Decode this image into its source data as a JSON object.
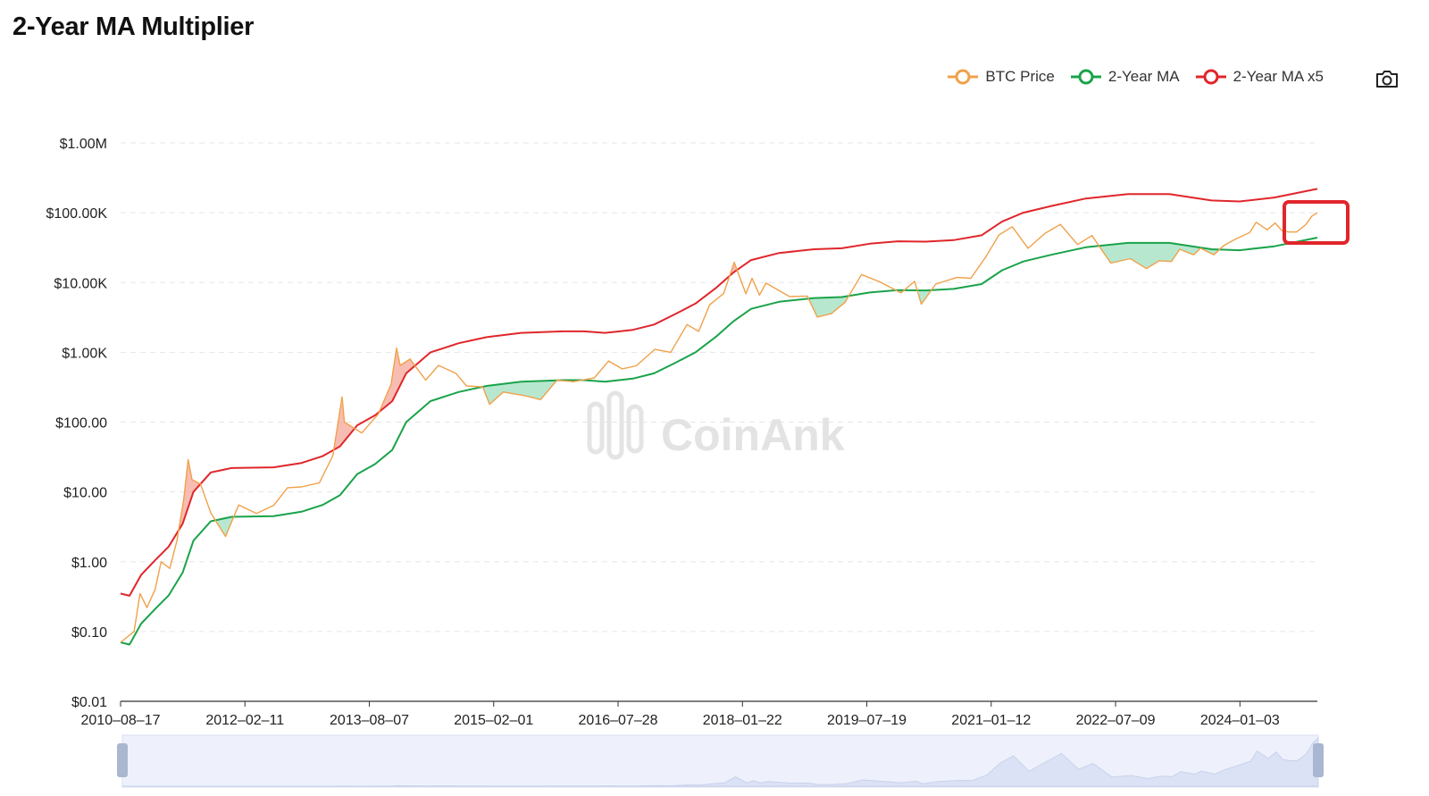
{
  "page": {
    "title": "2-Year MA Multiplier"
  },
  "legend": [
    {
      "label": "BTC Price",
      "color": "#f0a14a"
    },
    {
      "label": "2-Year MA",
      "color": "#1aa34a"
    },
    {
      "label": "2-Year MA x5",
      "color": "#e0262b"
    }
  ],
  "toolbar": {
    "camera_icon": "camera-icon"
  },
  "watermark": "CoinAnk",
  "colors": {
    "btc": "#f0a14a",
    "ma": "#1aa34a",
    "ma5": "#e0262b",
    "above_fill": "#f4a79a",
    "below_fill": "#9fe0bf",
    "highlight": "#e0262b"
  },
  "chart_data": {
    "type": "line",
    "title": "2-Year MA Multiplier",
    "y_scale": "log",
    "ylim": [
      0.01,
      1000000
    ],
    "y_ticks": [
      {
        "value": 1000000,
        "label": "$1.00M"
      },
      {
        "value": 100000,
        "label": "$100.00K"
      },
      {
        "value": 10000,
        "label": "$10.00K"
      },
      {
        "value": 1000,
        "label": "$1.00K"
      },
      {
        "value": 100,
        "label": "$100.00"
      },
      {
        "value": 10,
        "label": "$10.00"
      },
      {
        "value": 1,
        "label": "$1.00"
      },
      {
        "value": 0.1,
        "label": "$0.10"
      },
      {
        "value": 0.01,
        "label": "$0.01"
      }
    ],
    "x_range": [
      "2010-08-17",
      "2024-12-06"
    ],
    "x_ticks": [
      "2010-08-17",
      "2012-02-11",
      "2013-08-07",
      "2015-02-01",
      "2016-07-28",
      "2018-01-22",
      "2019-07-19",
      "2021-01-12",
      "2022-07-09",
      "2024-01-03"
    ],
    "grid": true,
    "legend_position": "top-right",
    "series": [
      {
        "name": "BTC Price",
        "color": "#f0a14a",
        "points": [
          [
            "2010-08-17",
            0.07
          ],
          [
            "2010-10-15",
            0.1
          ],
          [
            "2010-11-10",
            0.35
          ],
          [
            "2010-12-10",
            0.22
          ],
          [
            "2011-01-15",
            0.4
          ],
          [
            "2011-02-10",
            1.0
          ],
          [
            "2011-03-20",
            0.8
          ],
          [
            "2011-04-20",
            2.0
          ],
          [
            "2011-05-20",
            8.0
          ],
          [
            "2011-06-08",
            29.0
          ],
          [
            "2011-06-25",
            15.0
          ],
          [
            "2011-08-01",
            13.0
          ],
          [
            "2011-09-15",
            5.0
          ],
          [
            "2011-11-18",
            2.3
          ],
          [
            "2012-01-15",
            6.5
          ],
          [
            "2012-04-01",
            4.9
          ],
          [
            "2012-06-15",
            6.4
          ],
          [
            "2012-08-15",
            11.5
          ],
          [
            "2012-10-15",
            11.8
          ],
          [
            "2013-01-01",
            13.5
          ],
          [
            "2013-03-01",
            33.0
          ],
          [
            "2013-04-10",
            230.0
          ],
          [
            "2013-04-20",
            100.0
          ],
          [
            "2013-07-05",
            70.0
          ],
          [
            "2013-09-15",
            130.0
          ],
          [
            "2013-11-10",
            350.0
          ],
          [
            "2013-12-04",
            1150.0
          ],
          [
            "2013-12-20",
            650.0
          ],
          [
            "2014-02-01",
            800.0
          ],
          [
            "2014-04-10",
            400.0
          ],
          [
            "2014-06-05",
            650.0
          ],
          [
            "2014-08-20",
            500.0
          ],
          [
            "2014-10-05",
            330.0
          ],
          [
            "2014-12-15",
            320.0
          ],
          [
            "2015-01-14",
            180.0
          ],
          [
            "2015-03-15",
            270.0
          ],
          [
            "2015-06-15",
            240.0
          ],
          [
            "2015-08-25",
            210.0
          ],
          [
            "2015-11-04",
            400.0
          ],
          [
            "2016-01-15",
            380.0
          ],
          [
            "2016-04-15",
            430.0
          ],
          [
            "2016-06-17",
            750.0
          ],
          [
            "2016-08-15",
            580.0
          ],
          [
            "2016-10-15",
            640.0
          ],
          [
            "2017-01-04",
            1100.0
          ],
          [
            "2017-03-15",
            1000.0
          ],
          [
            "2017-05-25",
            2500.0
          ],
          [
            "2017-07-15",
            2000.0
          ],
          [
            "2017-09-01",
            4800.0
          ],
          [
            "2017-11-01",
            7000.0
          ],
          [
            "2017-12-17",
            19500.0
          ],
          [
            "2018-02-06",
            6900.0
          ],
          [
            "2018-03-05",
            11500.0
          ],
          [
            "2018-04-06",
            6600.0
          ],
          [
            "2018-05-05",
            9800.0
          ],
          [
            "2018-08-15",
            6300.0
          ],
          [
            "2018-11-01",
            6400.0
          ],
          [
            "2018-12-15",
            3200.0
          ],
          [
            "2019-02-15",
            3600.0
          ],
          [
            "2019-04-15",
            5200.0
          ],
          [
            "2019-06-26",
            13000.0
          ],
          [
            "2019-09-15",
            10200.0
          ],
          [
            "2019-12-15",
            7100.0
          ],
          [
            "2020-02-13",
            10400.0
          ],
          [
            "2020-03-13",
            4900.0
          ],
          [
            "2020-05-15",
            9500.0
          ],
          [
            "2020-08-15",
            11800.0
          ],
          [
            "2020-10-15",
            11500.0
          ],
          [
            "2020-12-20",
            23500.0
          ],
          [
            "2021-02-15",
            48000.0
          ],
          [
            "2021-04-14",
            63000.0
          ],
          [
            "2021-06-22",
            31000.0
          ],
          [
            "2021-09-05",
            51000.0
          ],
          [
            "2021-11-10",
            68000.0
          ],
          [
            "2022-01-24",
            35000.0
          ],
          [
            "2022-03-28",
            47000.0
          ],
          [
            "2022-06-18",
            19000.0
          ],
          [
            "2022-09-12",
            22000.0
          ],
          [
            "2022-11-21",
            15800.0
          ],
          [
            "2023-01-15",
            20500.0
          ],
          [
            "2023-03-10",
            20000.0
          ],
          [
            "2023-04-15",
            30000.0
          ],
          [
            "2023-06-15",
            25000.0
          ],
          [
            "2023-07-15",
            31000.0
          ],
          [
            "2023-09-11",
            25000.0
          ],
          [
            "2023-10-25",
            34000.0
          ],
          [
            "2023-12-15",
            42000.0
          ],
          [
            "2024-02-15",
            52000.0
          ],
          [
            "2024-03-14",
            73000.0
          ],
          [
            "2024-05-01",
            57000.0
          ],
          [
            "2024-06-05",
            71000.0
          ],
          [
            "2024-07-05",
            55000.0
          ],
          [
            "2024-08-05",
            53000.0
          ],
          [
            "2024-09-06",
            53000.0
          ],
          [
            "2024-10-15",
            67000.0
          ],
          [
            "2024-11-13",
            90000.0
          ],
          [
            "2024-12-06",
            100000.0
          ]
        ]
      },
      {
        "name": "2-Year MA",
        "color": "#1aa34a",
        "points": [
          [
            "2010-08-17",
            0.07
          ],
          [
            "2010-09-25",
            0.065
          ],
          [
            "2010-11-15",
            0.13
          ],
          [
            "2011-01-15",
            0.21
          ],
          [
            "2011-03-15",
            0.33
          ],
          [
            "2011-05-15",
            0.7
          ],
          [
            "2011-07-01",
            2.0
          ],
          [
            "2011-09-15",
            3.8
          ],
          [
            "2011-12-15",
            4.4
          ],
          [
            "2012-06-15",
            4.5
          ],
          [
            "2012-10-15",
            5.2
          ],
          [
            "2013-01-15",
            6.5
          ],
          [
            "2013-04-01",
            9.0
          ],
          [
            "2013-06-15",
            18.0
          ],
          [
            "2013-09-01",
            25.0
          ],
          [
            "2013-11-15",
            40.0
          ],
          [
            "2014-01-15",
            100.0
          ],
          [
            "2014-05-01",
            200.0
          ],
          [
            "2014-09-01",
            270.0
          ],
          [
            "2015-01-01",
            330.0
          ],
          [
            "2015-06-01",
            380.0
          ],
          [
            "2015-12-01",
            400.0
          ],
          [
            "2016-03-01",
            400.0
          ],
          [
            "2016-06-01",
            380.0
          ],
          [
            "2016-10-01",
            420.0
          ],
          [
            "2017-01-01",
            500.0
          ],
          [
            "2017-04-01",
            700.0
          ],
          [
            "2017-07-01",
            1000.0
          ],
          [
            "2017-10-01",
            1700.0
          ],
          [
            "2017-12-15",
            2800.0
          ],
          [
            "2018-03-01",
            4200.0
          ],
          [
            "2018-07-01",
            5300.0
          ],
          [
            "2018-12-01",
            6000.0
          ],
          [
            "2019-04-01",
            6200.0
          ],
          [
            "2019-08-01",
            7200.0
          ],
          [
            "2019-12-01",
            7800.0
          ],
          [
            "2020-04-01",
            7700.0
          ],
          [
            "2020-08-01",
            8100.0
          ],
          [
            "2020-12-01",
            9500.0
          ],
          [
            "2021-03-01",
            15000.0
          ],
          [
            "2021-06-01",
            20000.0
          ],
          [
            "2021-10-01",
            25000.0
          ],
          [
            "2022-03-01",
            32000.0
          ],
          [
            "2022-09-01",
            37000.0
          ],
          [
            "2023-03-01",
            37000.0
          ],
          [
            "2023-09-01",
            30000.0
          ],
          [
            "2024-01-01",
            29000.0
          ],
          [
            "2024-06-01",
            33000.0
          ],
          [
            "2024-12-06",
            44000.0
          ]
        ]
      },
      {
        "name": "2-Year MA x5",
        "color": "#e0262b",
        "points": [
          [
            "2010-08-17",
            0.35
          ],
          [
            "2010-09-25",
            0.325
          ],
          [
            "2010-11-15",
            0.65
          ],
          [
            "2011-01-15",
            1.05
          ],
          [
            "2011-03-15",
            1.65
          ],
          [
            "2011-05-15",
            3.5
          ],
          [
            "2011-07-01",
            10.0
          ],
          [
            "2011-09-15",
            19.0
          ],
          [
            "2011-12-15",
            22.0
          ],
          [
            "2012-06-15",
            22.5
          ],
          [
            "2012-10-15",
            26.0
          ],
          [
            "2013-01-15",
            32.5
          ],
          [
            "2013-04-01",
            45.0
          ],
          [
            "2013-06-15",
            90.0
          ],
          [
            "2013-09-01",
            125.0
          ],
          [
            "2013-11-15",
            200.0
          ],
          [
            "2014-01-15",
            500.0
          ],
          [
            "2014-05-01",
            1000.0
          ],
          [
            "2014-09-01",
            1350.0
          ],
          [
            "2015-01-01",
            1650.0
          ],
          [
            "2015-06-01",
            1900.0
          ],
          [
            "2015-12-01",
            2000.0
          ],
          [
            "2016-03-01",
            2000.0
          ],
          [
            "2016-06-01",
            1900.0
          ],
          [
            "2016-10-01",
            2100.0
          ],
          [
            "2017-01-01",
            2500.0
          ],
          [
            "2017-04-01",
            3500.0
          ],
          [
            "2017-07-01",
            5000.0
          ],
          [
            "2017-10-01",
            8500.0
          ],
          [
            "2017-12-15",
            14000.0
          ],
          [
            "2018-03-01",
            21000.0
          ],
          [
            "2018-07-01",
            26500.0
          ],
          [
            "2018-12-01",
            30000.0
          ],
          [
            "2019-04-01",
            31000.0
          ],
          [
            "2019-08-01",
            36000.0
          ],
          [
            "2019-12-01",
            39000.0
          ],
          [
            "2020-04-01",
            38500.0
          ],
          [
            "2020-08-01",
            40500.0
          ],
          [
            "2020-12-01",
            47500.0
          ],
          [
            "2021-03-01",
            75000.0
          ],
          [
            "2021-06-01",
            100000.0
          ],
          [
            "2021-10-01",
            125000.0
          ],
          [
            "2022-03-01",
            160000.0
          ],
          [
            "2022-09-01",
            185000.0
          ],
          [
            "2023-03-01",
            185000.0
          ],
          [
            "2023-09-01",
            150000.0
          ],
          [
            "2024-01-01",
            145000.0
          ],
          [
            "2024-06-01",
            165000.0
          ],
          [
            "2024-12-06",
            220000.0
          ]
        ]
      }
    ]
  }
}
